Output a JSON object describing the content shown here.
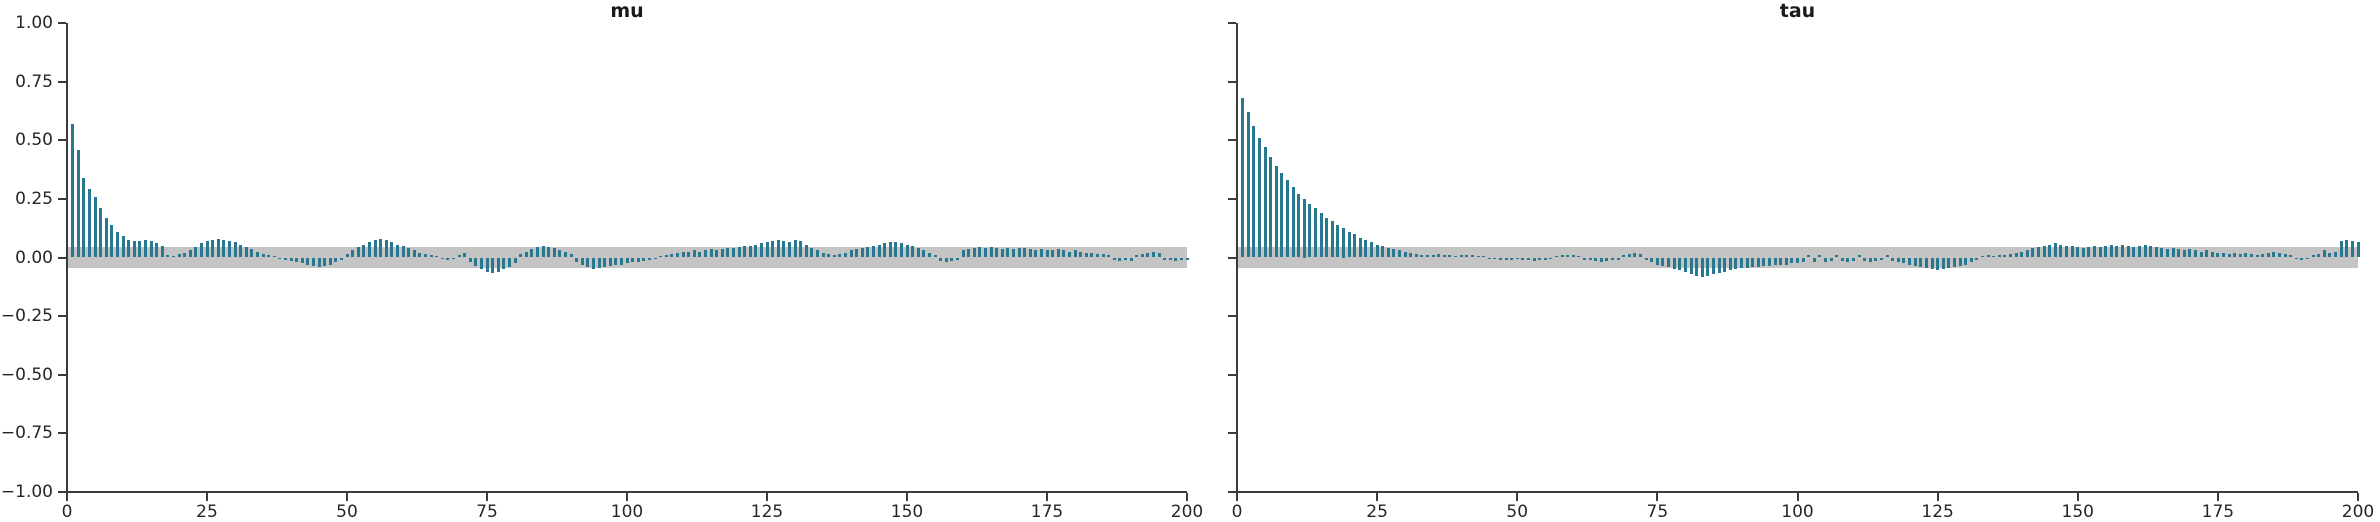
{
  "figure": {
    "background": "#ffffff",
    "bar_color": "#28788f",
    "band_color": "#c4c4c4",
    "axis_color": "#3b3b3b",
    "tick_label_color": "#262626",
    "title_color": "#1a1a1a"
  },
  "chart_data": [
    {
      "type": "bar",
      "title": "mu",
      "xlabel": "",
      "ylabel": "",
      "xlim": [
        0,
        200
      ],
      "ylim": [
        -1.0,
        1.0
      ],
      "grid": false,
      "legend": false,
      "confidence_band_halfwidth": 0.045,
      "xtick_values": [
        0,
        25,
        50,
        75,
        100,
        125,
        150,
        175,
        200
      ],
      "xtick_labels": [
        "0",
        "25",
        "50",
        "75",
        "100",
        "125",
        "150",
        "175",
        "200"
      ],
      "ytick_values": [
        1.0,
        0.75,
        0.5,
        0.25,
        0.0,
        -0.25,
        -0.5,
        -0.75,
        -1.0
      ],
      "ytick_labels": [
        "1.00",
        "0.75",
        "0.50",
        "0.25",
        "0.00",
        "−0.25",
        "−0.50",
        "−0.75",
        "−1.00"
      ],
      "show_ytick_labels": true,
      "lags": {
        "start": 1,
        "step": 1
      },
      "values": [
        0.57,
        0.46,
        0.34,
        0.29,
        0.26,
        0.21,
        0.17,
        0.14,
        0.11,
        0.09,
        0.075,
        0.07,
        0.07,
        0.075,
        0.07,
        0.06,
        0.05,
        0.012,
        0.008,
        0.015,
        0.02,
        0.03,
        0.045,
        0.06,
        0.07,
        0.075,
        0.08,
        0.075,
        0.07,
        0.065,
        0.055,
        0.045,
        0.035,
        0.025,
        0.015,
        0.01,
        0.005,
        -0.005,
        -0.01,
        -0.015,
        -0.02,
        -0.025,
        -0.03,
        -0.035,
        -0.04,
        -0.035,
        -0.03,
        -0.02,
        -0.01,
        0.015,
        0.03,
        0.045,
        0.055,
        0.065,
        0.075,
        0.08,
        0.075,
        0.065,
        0.055,
        0.05,
        0.04,
        0.03,
        0.02,
        0.015,
        0.01,
        0.005,
        -0.005,
        -0.01,
        -0.005,
        0.01,
        0.02,
        -0.02,
        -0.035,
        -0.05,
        -0.06,
        -0.065,
        -0.06,
        -0.05,
        -0.04,
        -0.025,
        0.015,
        0.025,
        0.035,
        0.045,
        0.05,
        0.045,
        0.04,
        0.03,
        0.025,
        0.015,
        -0.02,
        -0.03,
        -0.04,
        -0.05,
        -0.045,
        -0.04,
        -0.035,
        -0.03,
        -0.03,
        -0.025,
        -0.02,
        -0.02,
        -0.015,
        -0.01,
        -0.005,
        0.005,
        0.01,
        0.015,
        0.02,
        0.025,
        0.025,
        0.03,
        0.025,
        0.03,
        0.035,
        0.03,
        0.035,
        0.04,
        0.04,
        0.045,
        0.05,
        0.05,
        0.055,
        0.06,
        0.065,
        0.07,
        0.075,
        0.07,
        0.065,
        0.075,
        0.07,
        0.055,
        0.04,
        0.03,
        0.02,
        0.015,
        0.01,
        0.015,
        0.02,
        0.03,
        0.035,
        0.04,
        0.045,
        0.05,
        0.055,
        0.06,
        0.065,
        0.065,
        0.06,
        0.055,
        0.05,
        0.04,
        0.03,
        0.02,
        0.01,
        -0.015,
        -0.02,
        -0.015,
        -0.01,
        0.03,
        0.035,
        0.04,
        0.045,
        0.04,
        0.045,
        0.04,
        0.035,
        0.04,
        0.035,
        0.04,
        0.04,
        0.035,
        0.03,
        0.035,
        0.03,
        0.03,
        0.035,
        0.03,
        0.025,
        0.03,
        0.025,
        0.02,
        0.02,
        0.015,
        0.015,
        0.01,
        -0.01,
        -0.015,
        -0.01,
        -0.015,
        0.01,
        0.015,
        0.02,
        0.025,
        0.02,
        -0.01,
        -0.012,
        -0.015,
        -0.01,
        -0.012
      ]
    },
    {
      "type": "bar",
      "title": "tau",
      "xlabel": "",
      "ylabel": "",
      "xlim": [
        0,
        200
      ],
      "ylim": [
        -1.0,
        1.0
      ],
      "grid": false,
      "legend": false,
      "confidence_band_halfwidth": 0.045,
      "xtick_values": [
        0,
        25,
        50,
        75,
        100,
        125,
        150,
        175,
        200
      ],
      "xtick_labels": [
        "0",
        "25",
        "50",
        "75",
        "100",
        "125",
        "150",
        "175",
        "200"
      ],
      "ytick_values": [
        1.0,
        0.75,
        0.5,
        0.25,
        0.0,
        -0.25,
        -0.5,
        -0.75,
        -1.0
      ],
      "ytick_labels": [],
      "show_ytick_labels": false,
      "lags": {
        "start": 1,
        "step": 1
      },
      "values": [
        0.68,
        0.62,
        0.56,
        0.51,
        0.47,
        0.43,
        0.39,
        0.36,
        0.33,
        0.3,
        0.27,
        0.25,
        0.23,
        0.21,
        0.19,
        0.17,
        0.155,
        0.14,
        0.125,
        0.11,
        0.1,
        0.085,
        0.075,
        0.065,
        0.055,
        0.05,
        0.04,
        0.035,
        0.03,
        0.025,
        0.02,
        0.015,
        0.012,
        0.01,
        0.012,
        0.015,
        0.012,
        0.01,
        0.008,
        0.01,
        0.012,
        0.01,
        0.008,
        0.005,
        -0.005,
        -0.008,
        -0.01,
        -0.012,
        -0.01,
        -0.008,
        -0.01,
        -0.012,
        -0.015,
        -0.012,
        -0.01,
        -0.008,
        0.005,
        0.01,
        0.012,
        0.01,
        0.008,
        -0.01,
        -0.012,
        -0.015,
        -0.018,
        -0.015,
        -0.012,
        -0.01,
        0.01,
        0.015,
        0.02,
        0.015,
        -0.01,
        -0.02,
        -0.03,
        -0.035,
        -0.04,
        -0.05,
        -0.055,
        -0.06,
        -0.07,
        -0.08,
        -0.085,
        -0.08,
        -0.07,
        -0.065,
        -0.06,
        -0.055,
        -0.05,
        -0.045,
        -0.045,
        -0.04,
        -0.04,
        -0.035,
        -0.035,
        -0.03,
        -0.03,
        -0.03,
        -0.025,
        -0.025,
        -0.02,
        0.01,
        -0.02,
        0.01,
        -0.02,
        -0.015,
        0.01,
        -0.015,
        -0.02,
        -0.015,
        0.01,
        -0.015,
        -0.02,
        -0.015,
        -0.01,
        0.01,
        -0.015,
        -0.02,
        -0.025,
        -0.03,
        -0.035,
        -0.04,
        -0.045,
        -0.05,
        -0.055,
        -0.05,
        -0.045,
        -0.04,
        -0.035,
        -0.03,
        -0.02,
        -0.01,
        0.005,
        0.01,
        0.008,
        0.01,
        0.012,
        0.015,
        0.02,
        0.025,
        0.03,
        0.04,
        0.045,
        0.05,
        0.055,
        0.06,
        0.055,
        0.05,
        0.05,
        0.045,
        0.04,
        0.045,
        0.05,
        0.045,
        0.05,
        0.055,
        0.05,
        0.055,
        0.05,
        0.045,
        0.05,
        0.055,
        0.05,
        0.045,
        0.04,
        0.035,
        0.04,
        0.035,
        0.03,
        0.035,
        0.03,
        0.025,
        0.03,
        0.025,
        0.02,
        0.02,
        0.015,
        0.02,
        0.015,
        0.02,
        0.015,
        0.01,
        0.015,
        0.02,
        0.025,
        0.02,
        0.015,
        0.01,
        -0.008,
        -0.01,
        -0.008,
        0.01,
        0.015,
        0.03,
        0.02,
        0.025,
        0.07,
        0.075,
        0.07,
        0.065
      ]
    }
  ]
}
